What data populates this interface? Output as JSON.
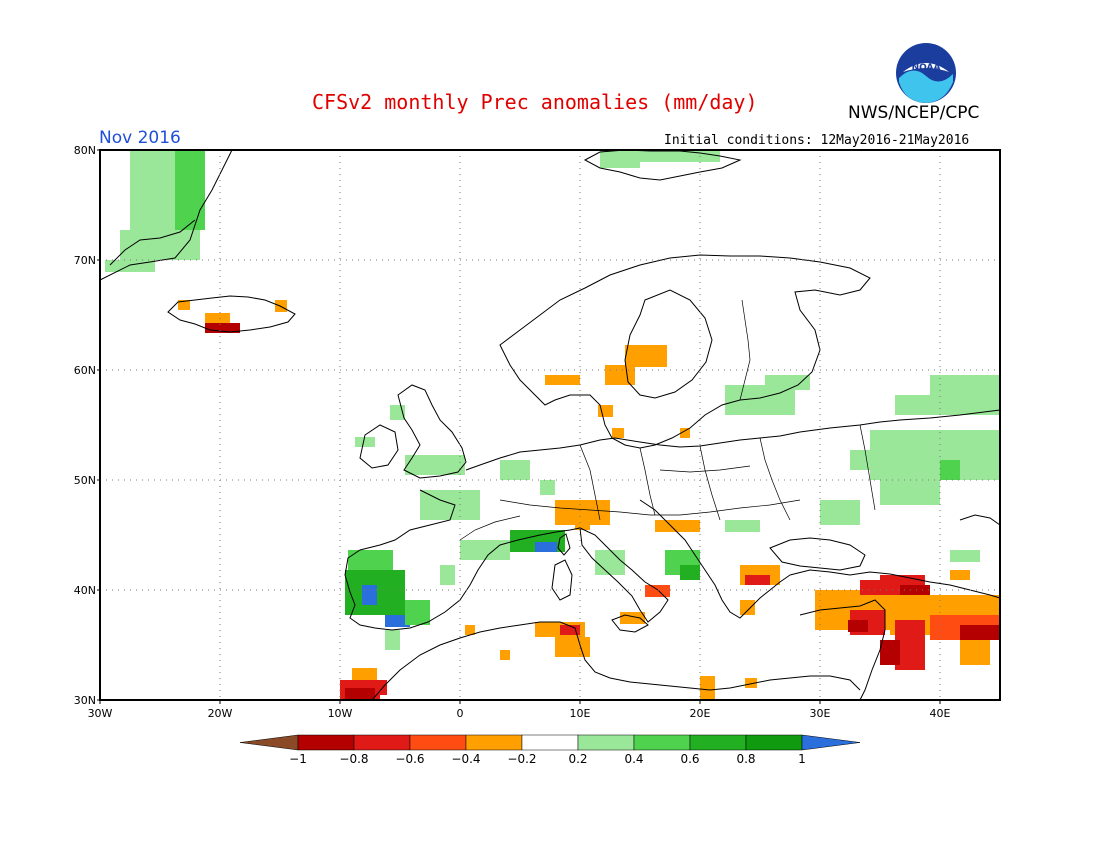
{
  "header": {
    "title": "CFSv2 monthly Prec anomalies (mm/day)",
    "agency": "NWS/NCEP/CPC",
    "month": "Nov 2016",
    "initial_conditions": "Initial conditions: 12May2016-21May2016",
    "logo_text": "NOAA"
  },
  "map": {
    "lon_range": [
      -30,
      45
    ],
    "lat_range": [
      30,
      80
    ],
    "lat_labels": [
      "80N",
      "70N",
      "60N",
      "50N",
      "40N",
      "30N"
    ],
    "lon_labels": [
      "30W",
      "20W",
      "10W",
      "0",
      "10E",
      "20E",
      "30E",
      "40E"
    ],
    "grid": "dotted",
    "anomaly_cells_note_colors": {
      "light_green": "#9ae79a",
      "green": "#4fd34f",
      "dark_green": "#22b022",
      "blue": "#2a6fdc",
      "orange": "#ffa000",
      "red_orange": "#ff4c12",
      "red": "#e01a16",
      "dark_red": "#b40000"
    }
  },
  "colorbar": {
    "labels": [
      "-1",
      "-0.8",
      "-0.6",
      "-0.4",
      "-0.2",
      "0.2",
      "0.4",
      "0.6",
      "0.8",
      "1"
    ],
    "colors": [
      "#8b4a26",
      "#b40000",
      "#e01a16",
      "#ff4c12",
      "#ffa000",
      "#ffffff",
      "#9ae79a",
      "#4fd34f",
      "#22b022",
      "#0f9a0f",
      "#2a6fdc"
    ]
  }
}
